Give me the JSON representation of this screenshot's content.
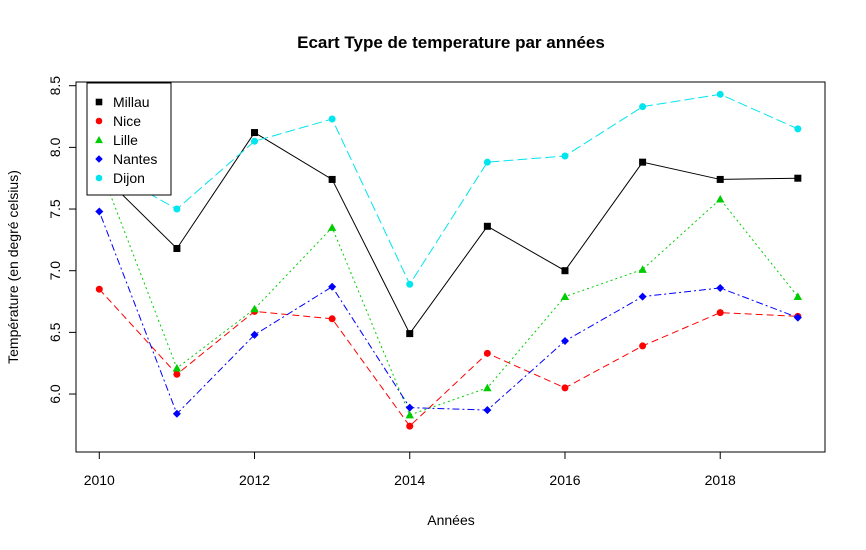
{
  "chart_data": {
    "type": "line",
    "title": "Ecart Type de temperature par années",
    "xlabel": "Années",
    "ylabel": "Température (en degré celsius)",
    "x": [
      2010,
      2011,
      2012,
      2013,
      2014,
      2015,
      2016,
      2017,
      2018,
      2019
    ],
    "xlim": [
      2009.7,
      2019.35
    ],
    "ylim": [
      5.53,
      8.53
    ],
    "xticks": [
      "2010",
      "2012",
      "2014",
      "2016",
      "2018"
    ],
    "yticks": [
      "6.0",
      "6.5",
      "7.0",
      "7.5",
      "8.0",
      "8.5"
    ],
    "legend_position": "top-left",
    "grid": false,
    "series": [
      {
        "name": "Millau",
        "color": "#000000",
        "marker": "square",
        "dash": "solid",
        "values": [
          7.8,
          7.18,
          8.12,
          7.74,
          6.49,
          7.36,
          7.0,
          7.88,
          7.74,
          7.75
        ]
      },
      {
        "name": "Nice",
        "color": "#ff0000",
        "marker": "circle",
        "dash": "dashed",
        "values": [
          6.85,
          6.16,
          6.67,
          6.61,
          5.74,
          6.33,
          6.05,
          6.39,
          6.66,
          6.63
        ]
      },
      {
        "name": "Lille",
        "color": "#00cd00",
        "marker": "triangle",
        "dash": "dotted",
        "values": [
          7.85,
          6.21,
          6.69,
          7.35,
          5.83,
          6.05,
          6.79,
          7.01,
          7.58,
          6.79
        ]
      },
      {
        "name": "Nantes",
        "color": "#0000ff",
        "marker": "diamond",
        "dash": "dotdash",
        "values": [
          7.48,
          5.84,
          6.48,
          6.87,
          5.89,
          5.87,
          6.43,
          6.79,
          6.86,
          6.62
        ]
      },
      {
        "name": "Dijon",
        "color": "#00e5ee",
        "marker": "circle",
        "dash": "longdash",
        "values": [
          7.85,
          7.5,
          8.05,
          8.23,
          6.89,
          7.88,
          7.93,
          8.33,
          8.43,
          8.15
        ]
      }
    ]
  }
}
